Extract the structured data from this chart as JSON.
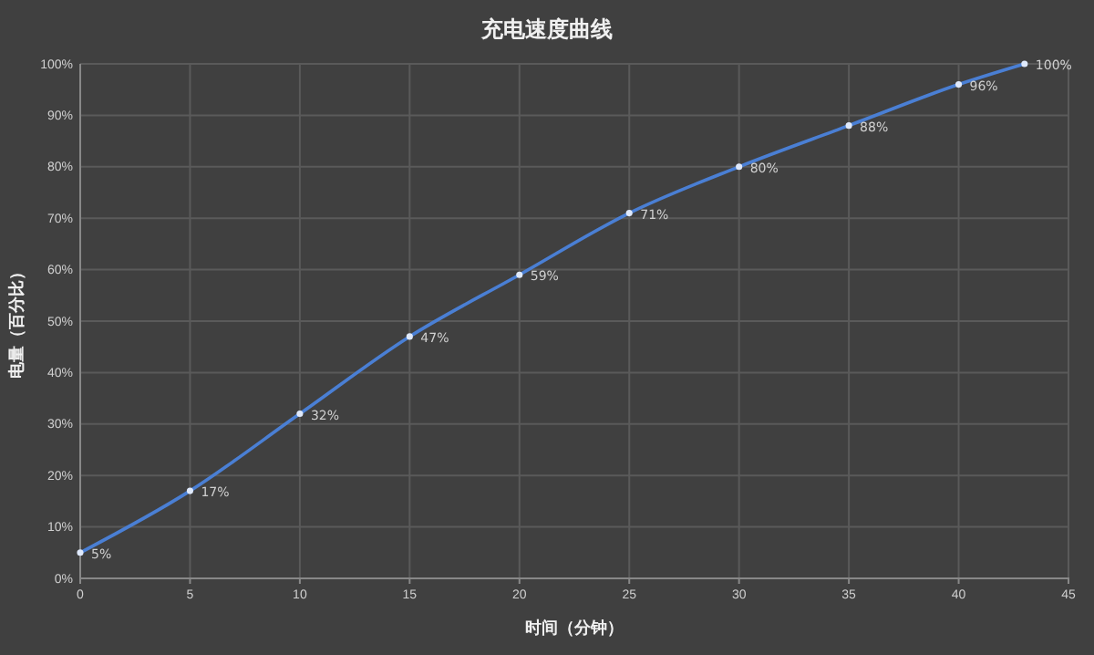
{
  "chart_data": {
    "type": "line",
    "title": "充电速度曲线",
    "xlabel": "时间（分钟）",
    "ylabel": "电量（百分比）",
    "x": [
      0,
      5,
      10,
      15,
      20,
      25,
      30,
      35,
      40,
      43
    ],
    "series": [
      {
        "color": "#4a7fd4",
        "values": [
          5,
          17,
          32,
          47,
          59,
          71,
          80,
          88,
          96,
          100
        ],
        "value_labels": [
          "5%",
          "17%",
          "32%",
          "47%",
          "59%",
          "71%",
          "80%",
          "88%",
          "96%",
          "100%"
        ]
      }
    ],
    "xlim": [
      0,
      45
    ],
    "xticks": [
      0,
      5,
      10,
      15,
      20,
      25,
      30,
      35,
      40,
      45
    ],
    "ylim": [
      0,
      100
    ],
    "yticks": [
      {
        "value": 0,
        "label": "0%"
      },
      {
        "value": 10,
        "label": "10%"
      },
      {
        "value": 20,
        "label": "20%"
      },
      {
        "value": 30,
        "label": "30%"
      },
      {
        "value": 40,
        "label": "40%"
      },
      {
        "value": 50,
        "label": "50%"
      },
      {
        "value": 60,
        "label": "60%"
      },
      {
        "value": 70,
        "label": "70%"
      },
      {
        "value": 80,
        "label": "80%"
      },
      {
        "value": 90,
        "label": "90%"
      },
      {
        "value": 100,
        "label": "100%"
      }
    ],
    "grid": true,
    "marker": "circle",
    "line_style": "solid"
  }
}
